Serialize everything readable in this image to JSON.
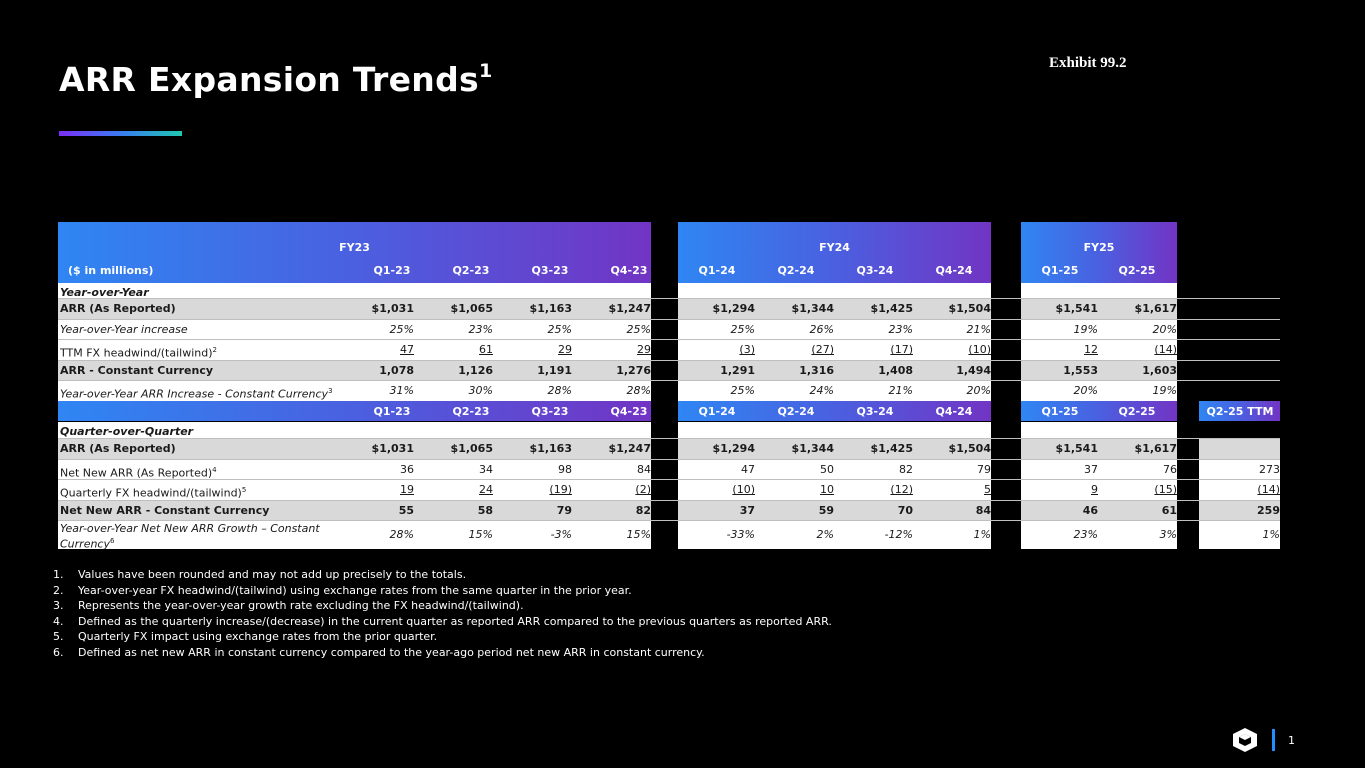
{
  "title": "ARR Expansion Trends",
  "title_sup": "1",
  "exhibit": "Exhibit 99.2",
  "units": "($ in millions)",
  "fiscal_years": [
    "FY23",
    "FY24",
    "FY25"
  ],
  "quarters_fy23": [
    "Q1-23",
    "Q2-23",
    "Q3-23",
    "Q4-23"
  ],
  "quarters_fy24": [
    "Q1-24",
    "Q2-24",
    "Q3-24",
    "Q4-24"
  ],
  "quarters_fy25": [
    "Q1-25",
    "Q2-25"
  ],
  "ttm_label": "Q2-25 TTM",
  "yoy_section": "Year-over-Year",
  "qoq_section": "Quarter-over-Quarter",
  "yoy_rows": [
    {
      "label": "ARR (As Reported)",
      "values": [
        "$1,031",
        "$1,065",
        "$1,163",
        "$1,247",
        "$1,294",
        "$1,344",
        "$1,425",
        "$1,504",
        "$1,541",
        "$1,617"
      ]
    },
    {
      "label": "Year-over-Year increase",
      "values": [
        "25%",
        "23%",
        "25%",
        "25%",
        "25%",
        "26%",
        "23%",
        "21%",
        "19%",
        "20%"
      ]
    },
    {
      "label": "TTM FX headwind/(tailwind)",
      "sup": "2",
      "values": [
        "47",
        "61",
        "29",
        "29",
        "(3)",
        "(27)",
        "(17)",
        "(10)",
        "12",
        "(14)"
      ]
    },
    {
      "label": "ARR - Constant Currency",
      "values": [
        "1,078",
        "1,126",
        "1,191",
        "1,276",
        "1,291",
        "1,316",
        "1,408",
        "1,494",
        "1,553",
        "1,603"
      ]
    },
    {
      "label": "Year-over-Year ARR Increase - Constant Currency",
      "sup": "3",
      "values": [
        "31%",
        "30%",
        "28%",
        "28%",
        "25%",
        "24%",
        "21%",
        "20%",
        "20%",
        "19%"
      ]
    }
  ],
  "qoq_rows": [
    {
      "label": "ARR (As Reported)",
      "values": [
        "$1,031",
        "$1,065",
        "$1,163",
        "$1,247",
        "$1,294",
        "$1,344",
        "$1,425",
        "$1,504",
        "$1,541",
        "$1,617"
      ],
      "ttm": ""
    },
    {
      "label": "Net New ARR (As Reported)",
      "sup": "4",
      "values": [
        "36",
        "34",
        "98",
        "84",
        "47",
        "50",
        "82",
        "79",
        "37",
        "76"
      ],
      "ttm": "273"
    },
    {
      "label": "Quarterly FX headwind/(tailwind)",
      "sup": "5",
      "values": [
        "19",
        "24",
        "(19)",
        "(2)",
        "(10)",
        "10",
        "(12)",
        "5",
        "9",
        "(15)"
      ],
      "ttm": "(14)"
    },
    {
      "label": "Net New ARR - Constant Currency",
      "values": [
        "55",
        "58",
        "79",
        "82",
        "37",
        "59",
        "70",
        "84",
        "46",
        "61"
      ],
      "ttm": "259"
    },
    {
      "label": "Year-over-Year Net New ARR Growth – Constant Currency",
      "sup": "6",
      "values": [
        "28%",
        "15%",
        "-3%",
        "15%",
        "-33%",
        "2%",
        "-12%",
        "1%",
        "23%",
        "3%"
      ],
      "ttm": "1%"
    }
  ],
  "footnotes": [
    "Values have been rounded and may not add up precisely to the totals.",
    "Year-over-year FX headwind/(tailwind) using exchange rates from the same quarter in the prior year.",
    "Represents the year-over-year growth rate excluding the FX headwind/(tailwind).",
    "Defined as the quarterly increase/(decrease) in the current quarter as reported ARR compared to the previous quarters as reported ARR.",
    "Quarterly FX impact using exchange rates from the prior quarter.",
    "Defined as net new ARR in constant currency compared to the year-ago period net new ARR in constant currency."
  ],
  "page_number": "1"
}
